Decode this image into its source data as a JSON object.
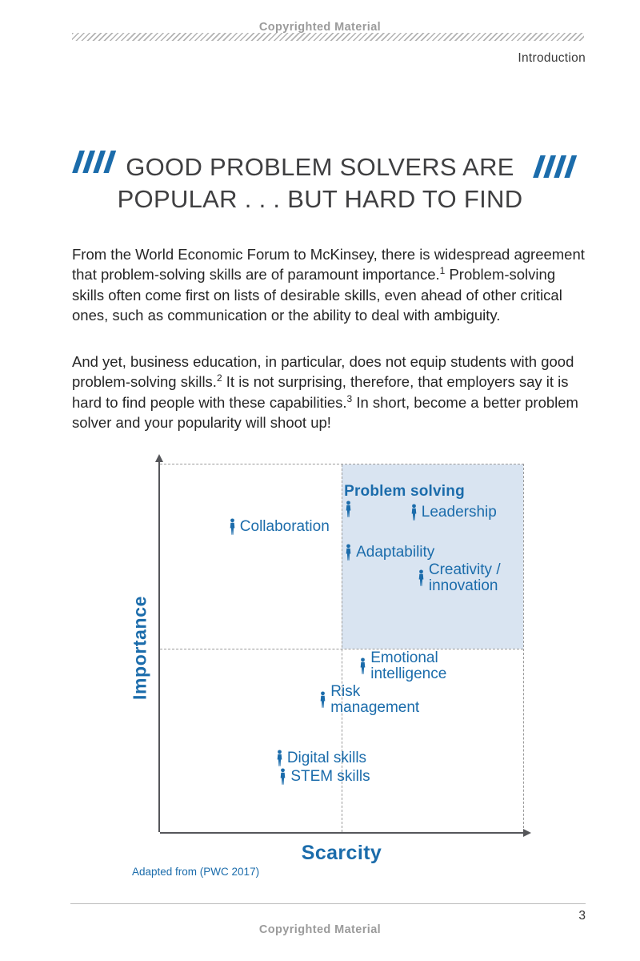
{
  "page": {
    "copyright_top": "Copyrighted Material",
    "copyright_bottom": "Copyrighted Material",
    "section_label": "Introduction",
    "page_number": "3"
  },
  "title": {
    "line1": "GOOD PROBLEM SOLVERS ARE",
    "line2": "POPULAR . . . BUT HARD TO FIND"
  },
  "body": {
    "p1_s1": "From the World Economic Forum to McKinsey, there is widespread agreement that problem-solving skills are of paramount importance.",
    "p1_sup1": "1",
    "p1_s2": " Problem-solving skills often come first on lists of desirable skills, even ahead of other critical ones, such as communication or the ability to deal with ambiguity.",
    "p2_s1": "And yet, business education, in particular, does not equip students with good problem-solving skills.",
    "p2_sup1": "2",
    "p2_s2": " It is not surprising, therefore, that employers say it is hard to find people with these capabilities.",
    "p2_sup2": "3",
    "p2_s3": " In short, become a better problem solver and your popularity will shoot up!"
  },
  "colors": {
    "accent_blue": "#1b6cab",
    "quadrant_fill": "#d9e4f1",
    "axis_gray": "#55565a",
    "muted_gray": "#9b9b9b"
  },
  "chart_data": {
    "type": "scatter",
    "xlabel": "Scarcity",
    "ylabel": "Importance",
    "source_note": "Adapted from (PWC 2017)",
    "xlim": [
      0,
      10
    ],
    "ylim": [
      0,
      10
    ],
    "grid": "dashed-quadrant-midlines",
    "quadrant_highlight": "top-right",
    "marker": "person-icon",
    "points": [
      {
        "label": "Problem solving",
        "scarcity": 5.2,
        "importance": 8.8,
        "bold": true,
        "label_position": "above"
      },
      {
        "label": "Leadership",
        "scarcity": 7.0,
        "importance": 8.7
      },
      {
        "label": "Collaboration",
        "scarcity": 2.0,
        "importance": 8.3
      },
      {
        "label": "Adaptability",
        "scarcity": 5.2,
        "importance": 7.6
      },
      {
        "label": "Creativity /\ninnovation",
        "scarcity": 7.2,
        "importance": 6.9
      },
      {
        "label": "Emotional\nintelligence",
        "scarcity": 5.6,
        "importance": 4.5
      },
      {
        "label": "Risk\nmanagement",
        "scarcity": 4.5,
        "importance": 3.6
      },
      {
        "label": "Digital skills",
        "scarcity": 3.3,
        "importance": 2.0
      },
      {
        "label": "STEM skills",
        "scarcity": 3.4,
        "importance": 1.5
      }
    ]
  }
}
